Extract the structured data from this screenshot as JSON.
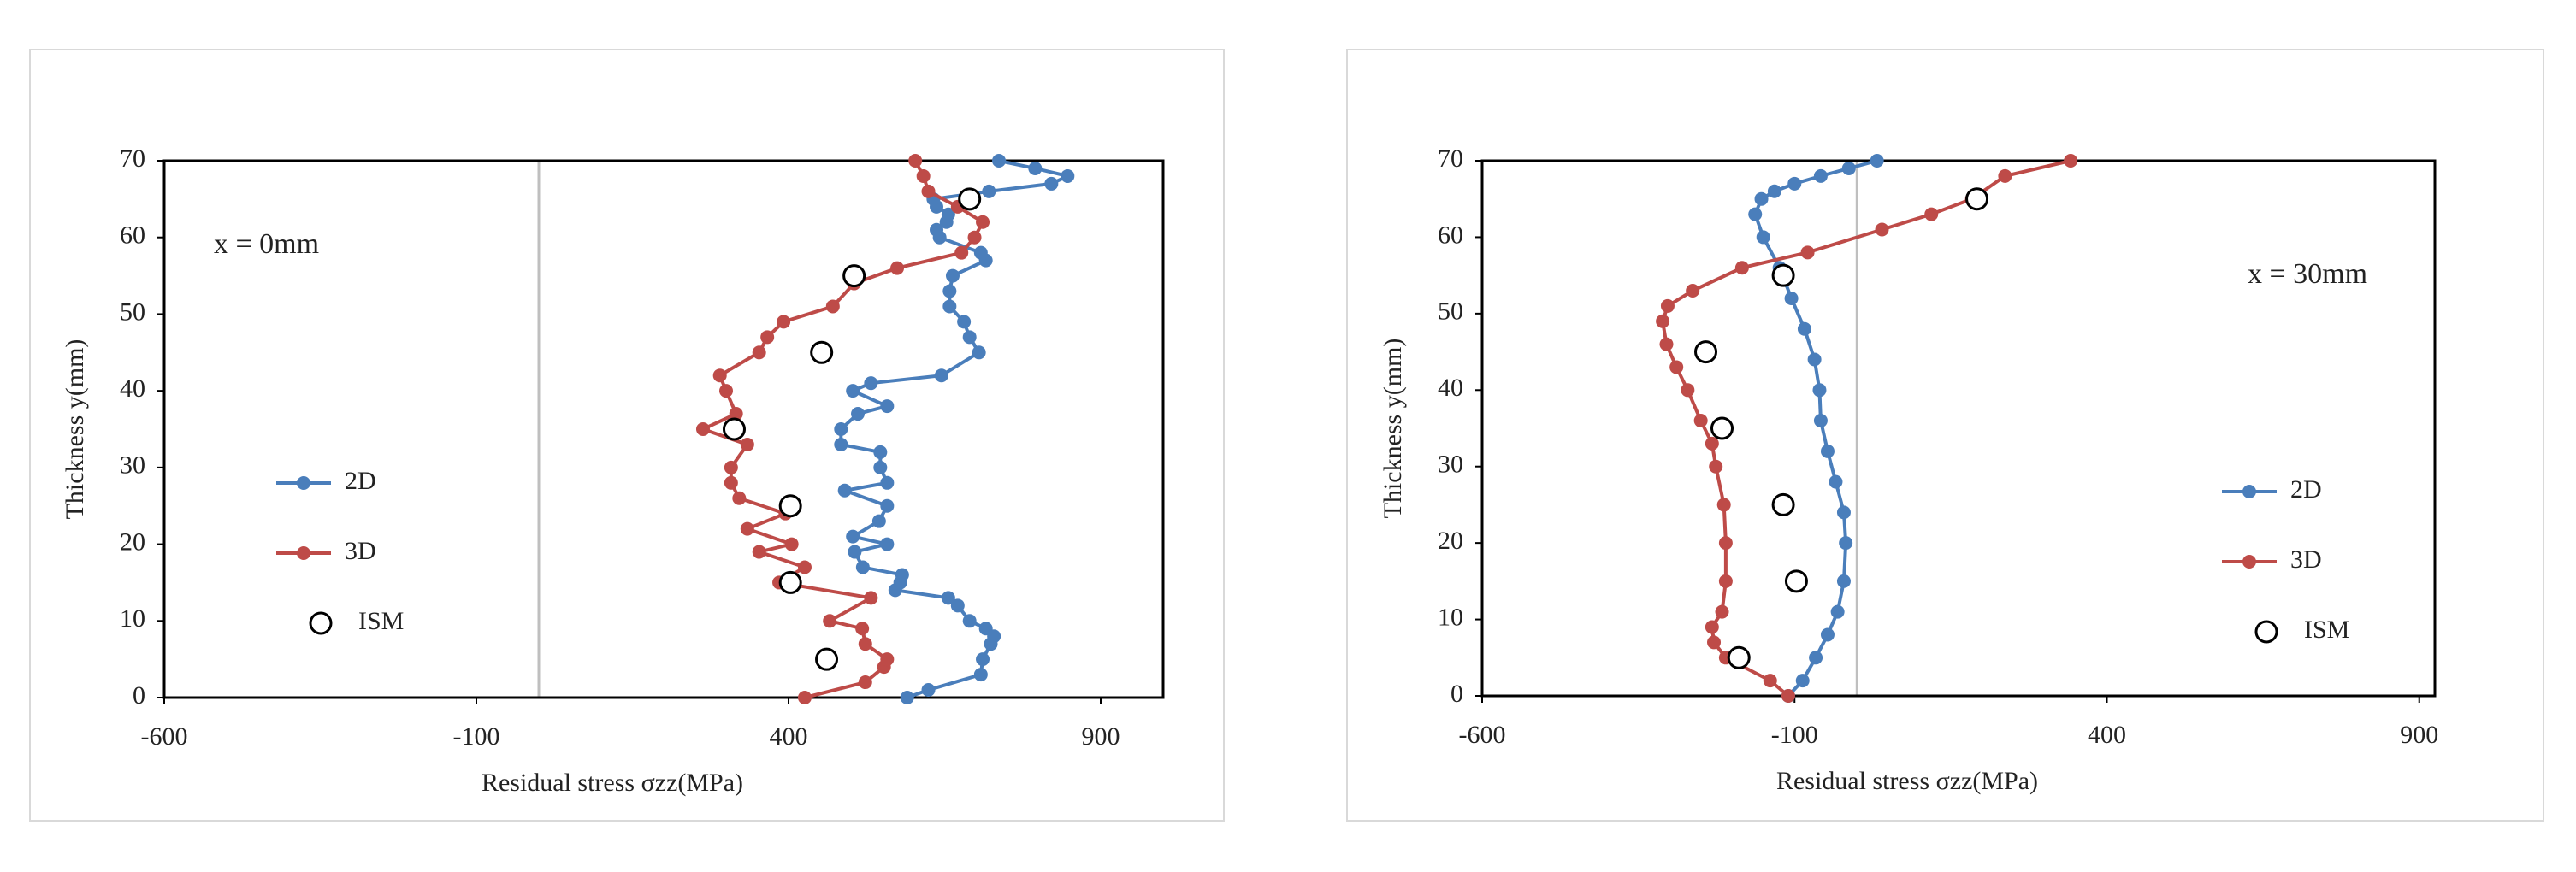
{
  "chart_data": [
    {
      "type": "line",
      "annotation": "x = 0mm",
      "xlabel": "Residual stress σzz(MPa)",
      "ylabel": "Thickness y(mm)",
      "xlim": [
        -600,
        1000
      ],
      "xticks": [
        -600,
        -100,
        400,
        900
      ],
      "ylim": [
        0,
        70
      ],
      "yticks": [
        0,
        10,
        20,
        30,
        40,
        50,
        60,
        70
      ],
      "legend": "left",
      "series": [
        {
          "name": "2D",
          "color": "#4a7ebb",
          "line": true,
          "y": [
            0,
            1,
            3,
            5,
            7,
            8,
            9,
            10,
            12,
            13,
            14,
            15,
            16,
            17,
            19,
            20,
            21,
            23,
            25,
            27,
            28,
            30,
            32,
            33,
            35,
            37,
            38,
            40,
            41,
            42,
            45,
            47,
            49,
            51,
            53,
            55,
            57,
            58,
            60,
            61,
            62,
            63,
            64,
            65,
            66,
            67,
            68,
            69,
            70
          ],
          "x": [
            590,
            624,
            708,
            711,
            724,
            729,
            716,
            690,
            671,
            656,
            571,
            579,
            582,
            519,
            506,
            558,
            503,
            545,
            558,
            490,
            558,
            547,
            547,
            484,
            484,
            511,
            558,
            503,
            532,
            645,
            705,
            690,
            681,
            658,
            658,
            663,
            716,
            708,
            642,
            637,
            653,
            656,
            637,
            632,
            721,
            821,
            847,
            795,
            737
          ]
        },
        {
          "name": "3D",
          "color": "#be4b48",
          "line": true,
          "y": [
            0,
            2,
            4,
            5,
            7,
            9,
            10,
            13,
            15,
            17,
            19,
            20,
            22,
            24,
            26,
            28,
            30,
            33,
            35,
            37,
            40,
            42,
            45,
            47,
            49,
            51,
            54,
            56,
            58,
            60,
            62,
            64,
            66,
            68,
            70
          ],
          "x": [
            426,
            523,
            553,
            558,
            523,
            518,
            466,
            532,
            385,
            426,
            353,
            405,
            334,
            395,
            321,
            308,
            308,
            334,
            263,
            316,
            300,
            290,
            353,
            366,
            392,
            471,
            505,
            574,
            677,
            698,
            711,
            671,
            624,
            616,
            603
          ]
        },
        {
          "name": "ISM",
          "color": "#000000",
          "line": false,
          "y": [
            65,
            55,
            45,
            35,
            25,
            15,
            5
          ],
          "x": [
            690,
            505,
            453,
            313,
            403,
            403,
            461
          ]
        }
      ]
    },
    {
      "type": "line",
      "annotation": "x = 30mm",
      "xlabel": "Residual stress σzz(MPa)",
      "ylabel": "Thickness y(mm)",
      "xlim": [
        -600,
        925
      ],
      "xticks": [
        -600,
        -100,
        400,
        900
      ],
      "ylim": [
        0,
        70
      ],
      "yticks": [
        0,
        10,
        20,
        30,
        40,
        50,
        60,
        70
      ],
      "legend": "right",
      "series": [
        {
          "name": "2D",
          "color": "#4a7ebb",
          "line": true,
          "y": [
            0,
            2,
            5,
            8,
            11,
            15,
            20,
            24,
            28,
            32,
            36,
            40,
            44,
            48,
            52,
            56,
            60,
            63,
            65,
            66,
            67,
            68,
            69,
            70
          ],
          "x": [
            -110,
            -87,
            -66,
            -47,
            -31,
            -21,
            -18,
            -21,
            -34,
            -47,
            -58,
            -60,
            -68,
            -84,
            -105,
            -124,
            -150,
            -163,
            -153,
            -132,
            -100,
            -58,
            -13,
            32
          ]
        },
        {
          "name": "3D",
          "color": "#be4b48",
          "line": true,
          "y": [
            0,
            2,
            5,
            7,
            9,
            11,
            15,
            20,
            25,
            30,
            33,
            36,
            40,
            43,
            46,
            49,
            51,
            53,
            56,
            58,
            61,
            63,
            65,
            68,
            70
          ],
          "x": [
            -110,
            -139,
            -210,
            -229,
            -232,
            -216,
            -210,
            -210,
            -213,
            -226,
            -232,
            -250,
            -271,
            -289,
            -305,
            -311,
            -303,
            -263,
            -184,
            -79,
            40,
            119,
            184,
            237,
            342
          ]
        },
        {
          "name": "ISM",
          "color": "#000000",
          "line": false,
          "y": [
            65,
            55,
            45,
            35,
            25,
            15,
            5
          ],
          "x": [
            192,
            -118,
            -242,
            -216,
            -118,
            -97,
            -189
          ]
        }
      ]
    }
  ]
}
